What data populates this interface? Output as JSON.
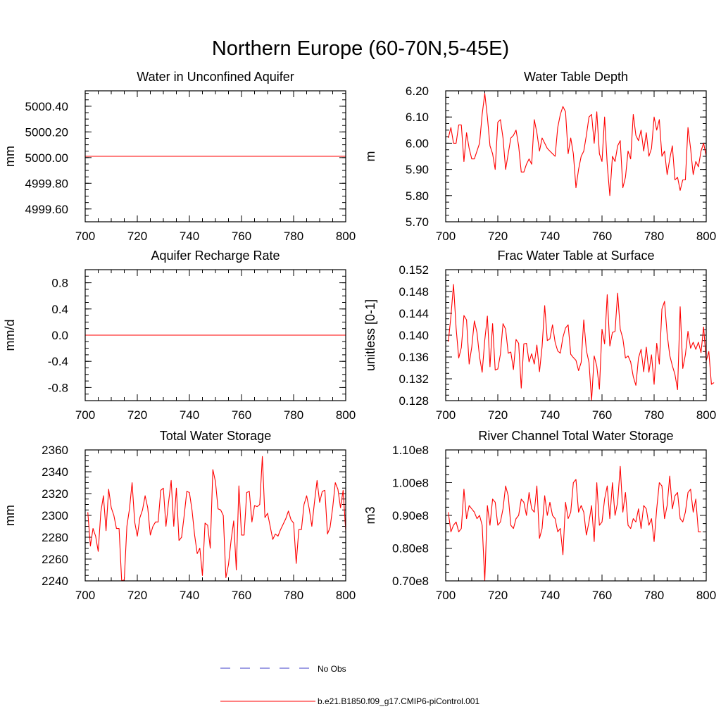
{
  "title": "Northern Europe (60-70N,5-45E)",
  "colors": {
    "model": "#ff0000",
    "obs": "#3c3cc8",
    "axis": "#000000"
  },
  "legend": {
    "obs_label": "No Obs",
    "model_label": "b.e21.B1850.f09_g17.CMIP6-piControl.001"
  },
  "chart_data": [
    {
      "type": "line",
      "title": "Water in Unconfined Aquifer",
      "ylabel": "mm",
      "xlim": [
        700,
        800
      ],
      "ylim": [
        4999.5,
        5000.52
      ],
      "xticks": [
        "700",
        "720",
        "740",
        "760",
        "780",
        "800"
      ],
      "yticks": [
        {
          "v": 4999.6,
          "label": "4999.60"
        },
        {
          "v": 4999.8,
          "label": "4999.80"
        },
        {
          "v": 5000.0,
          "label": "5000.00"
        },
        {
          "v": 5000.2,
          "label": "5000.20"
        },
        {
          "v": 5000.4,
          "label": "5000.40"
        }
      ],
      "series": [
        {
          "name": "b.e21.B1850.f09_g17.CMIP6-piControl.001",
          "x": [
            700,
            800
          ],
          "values": [
            5000.01,
            5000.01
          ]
        }
      ]
    },
    {
      "type": "line",
      "title": "Water Table Depth",
      "ylabel": "m",
      "xlim": [
        700,
        800
      ],
      "ylim": [
        5.7,
        6.2
      ],
      "xticks": [
        "700",
        "720",
        "740",
        "760",
        "780",
        "800"
      ],
      "yticks": [
        {
          "v": 5.7,
          "label": "5.70"
        },
        {
          "v": 5.8,
          "label": "5.80"
        },
        {
          "v": 5.9,
          "label": "5.90"
        },
        {
          "v": 6.0,
          "label": "6.00"
        },
        {
          "v": 6.1,
          "label": "6.10"
        },
        {
          "v": 6.2,
          "label": "6.20"
        }
      ],
      "series": [
        {
          "name": "b.e21.B1850.f09_g17.CMIP6-piControl.001",
          "x_start": 701,
          "values": [
            6.02,
            6.06,
            6.0,
            6.0,
            6.07,
            6.07,
            5.93,
            6.04,
            5.98,
            5.94,
            5.94,
            5.97,
            6.0,
            6.11,
            6.19,
            6.1,
            5.99,
            5.96,
            5.9,
            6.08,
            6.09,
            6.02,
            5.9,
            5.96,
            6.02,
            6.03,
            6.05,
            5.99,
            5.89,
            5.89,
            5.92,
            5.94,
            5.92,
            6.09,
            6.04,
            5.97,
            6.02,
            6.0,
            5.98,
            5.97,
            5.96,
            5.95,
            6.06,
            6.11,
            6.14,
            6.12,
            5.96,
            6.02,
            5.96,
            5.83,
            5.9,
            5.95,
            5.97,
            6.03,
            6.1,
            6.11,
            6.0,
            6.12,
            5.96,
            5.93,
            6.1,
            5.92,
            5.8,
            5.95,
            5.93,
            5.99,
            6.01,
            5.83,
            5.87,
            5.97,
            5.94,
            6.11,
            6.03,
            6.01,
            6.05,
            5.97,
            6.04,
            5.95,
            5.98,
            6.1,
            6.05,
            6.09,
            5.95,
            5.97,
            5.88,
            5.94,
            5.99,
            5.86,
            5.87,
            5.82,
            5.86,
            5.86,
            6.06,
            5.98,
            5.88,
            5.93,
            5.91,
            5.97,
            6.0,
            5.95
          ]
        }
      ]
    },
    {
      "type": "line",
      "title": "Aquifer Recharge Rate",
      "ylabel": "mm/d",
      "xlim": [
        700,
        800
      ],
      "ylim": [
        -1.0,
        1.0
      ],
      "xticks": [
        "700",
        "720",
        "740",
        "760",
        "780",
        "800"
      ],
      "yticks": [
        {
          "v": -0.8,
          "label": "-0.8"
        },
        {
          "v": -0.4,
          "label": "-0.4"
        },
        {
          "v": 0.0,
          "label": "0.0"
        },
        {
          "v": 0.4,
          "label": "0.4"
        },
        {
          "v": 0.8,
          "label": "0.8"
        }
      ],
      "series": [
        {
          "name": "b.e21.B1850.f09_g17.CMIP6-piControl.001",
          "x": [
            700,
            800
          ],
          "values": [
            0.0,
            0.0
          ]
        }
      ]
    },
    {
      "type": "line",
      "title": "Frac Water Table at Surface",
      "ylabel": "unitless [0-1]",
      "xlim": [
        700,
        800
      ],
      "ylim": [
        0.128,
        0.152
      ],
      "xticks": [
        "700",
        "720",
        "740",
        "760",
        "780",
        "800"
      ],
      "yticks": [
        {
          "v": 0.128,
          "label": "0.128"
        },
        {
          "v": 0.132,
          "label": "0.132"
        },
        {
          "v": 0.136,
          "label": "0.136"
        },
        {
          "v": 0.14,
          "label": "0.140"
        },
        {
          "v": 0.144,
          "label": "0.144"
        },
        {
          "v": 0.148,
          "label": "0.148"
        },
        {
          "v": 0.152,
          "label": "0.152"
        }
      ],
      "series": [
        {
          "name": "b.e21.B1850.f09_g17.CMIP6-piControl.001",
          "x_start": 701,
          "values": [
            0.1388,
            0.1434,
            0.1493,
            0.1413,
            0.1358,
            0.1377,
            0.1436,
            0.1428,
            0.1347,
            0.1378,
            0.1426,
            0.1405,
            0.136,
            0.1332,
            0.1391,
            0.1435,
            0.1342,
            0.1421,
            0.1336,
            0.1338,
            0.1365,
            0.1421,
            0.1411,
            0.1367,
            0.1369,
            0.1337,
            0.1392,
            0.1385,
            0.1303,
            0.1384,
            0.1385,
            0.1351,
            0.1366,
            0.1347,
            0.1382,
            0.1333,
            0.1379,
            0.1454,
            0.139,
            0.1393,
            0.1419,
            0.1387,
            0.1371,
            0.1367,
            0.1396,
            0.1413,
            0.1419,
            0.1365,
            0.1359,
            0.1354,
            0.1335,
            0.135,
            0.1428,
            0.1372,
            0.135,
            0.128,
            0.1362,
            0.1343,
            0.1301,
            0.1411,
            0.1384,
            0.1474,
            0.138,
            0.1405,
            0.1407,
            0.1477,
            0.1411,
            0.1394,
            0.1358,
            0.1362,
            0.1351,
            0.1324,
            0.1308,
            0.1358,
            0.1374,
            0.1333,
            0.1378,
            0.1332,
            0.1364,
            0.131,
            0.1385,
            0.1347,
            0.1448,
            0.1462,
            0.1402,
            0.1363,
            0.1344,
            0.1328,
            0.13,
            0.1452,
            0.1339,
            0.1364,
            0.1407,
            0.1376,
            0.1387,
            0.1374,
            0.1387,
            0.1368,
            0.1415,
            0.1353,
            0.137,
            0.131,
            0.1313
          ]
        }
      ]
    },
    {
      "type": "line",
      "title": "Total Water Storage",
      "ylabel": "mm",
      "xlim": [
        700,
        800
      ],
      "ylim": [
        2240,
        2360
      ],
      "xticks": [
        "700",
        "720",
        "740",
        "760",
        "780",
        "800"
      ],
      "yticks": [
        {
          "v": 2240,
          "label": "2240"
        },
        {
          "v": 2260,
          "label": "2260"
        },
        {
          "v": 2280,
          "label": "2280"
        },
        {
          "v": 2300,
          "label": "2300"
        },
        {
          "v": 2320,
          "label": "2320"
        },
        {
          "v": 2340,
          "label": "2340"
        },
        {
          "v": 2360,
          "label": "2360"
        }
      ],
      "series": [
        {
          "name": "b.e21.B1850.f09_g17.CMIP6-piControl.001",
          "x_start": 701,
          "values": [
            2303,
            2272,
            2288,
            2281,
            2267,
            2303,
            2318,
            2286,
            2324,
            2307,
            2300,
            2288,
            2288,
            2240,
            2241,
            2290,
            2306,
            2330,
            2294,
            2281,
            2298,
            2305,
            2318,
            2307,
            2282,
            2290,
            2294,
            2294,
            2323,
            2325,
            2290,
            2312,
            2332,
            2290,
            2325,
            2277,
            2280,
            2300,
            2322,
            2321,
            2305,
            2282,
            2265,
            2270,
            2245,
            2293,
            2291,
            2270,
            2342,
            2331,
            2306,
            2305,
            2300,
            2243,
            2255,
            2277,
            2295,
            2250,
            2327,
            2282,
            2282,
            2321,
            2322,
            2294,
            2309,
            2308,
            2310,
            2354,
            2298,
            2302,
            2290,
            2278,
            2283,
            2281,
            2287,
            2292,
            2297,
            2304,
            2296,
            2293,
            2256,
            2287,
            2287,
            2310,
            2318,
            2306,
            2290,
            2312,
            2332,
            2312,
            2322,
            2323,
            2283,
            2289,
            2307,
            2330,
            2324,
            2307,
            2323,
            2286
          ]
        }
      ]
    },
    {
      "type": "line",
      "title": "River Channel Total Water Storage",
      "ylabel": "m3",
      "xlim": [
        700,
        800
      ],
      "ylim": [
        0.7,
        1.1
      ],
      "units": "1e8",
      "xticks": [
        "700",
        "720",
        "740",
        "760",
        "780",
        "800"
      ],
      "yticks": [
        {
          "v": 0.7,
          "label": "0.70e8"
        },
        {
          "v": 0.8,
          "label": "0.80e8"
        },
        {
          "v": 0.9,
          "label": "0.90e8"
        },
        {
          "v": 1.0,
          "label": "1.00e8"
        },
        {
          "v": 1.1,
          "label": "1.10e8"
        }
      ],
      "series": [
        {
          "name": "b.e21.B1850.f09_g17.CMIP6-piControl.001",
          "x_start": 701,
          "values": [
            0.91,
            0.85,
            0.87,
            0.88,
            0.85,
            0.86,
            0.98,
            0.89,
            0.93,
            0.92,
            0.91,
            0.89,
            0.9,
            0.87,
            0.7,
            0.93,
            0.87,
            0.95,
            0.94,
            0.87,
            0.88,
            0.92,
            0.99,
            0.96,
            0.87,
            0.86,
            0.89,
            0.9,
            0.95,
            0.94,
            0.9,
            0.97,
            0.92,
            0.91,
            0.99,
            0.83,
            0.86,
            0.96,
            0.9,
            0.94,
            0.9,
            0.89,
            0.85,
            0.86,
            0.78,
            0.94,
            0.89,
            0.91,
            1.0,
            1.01,
            0.91,
            0.93,
            0.91,
            0.84,
            0.88,
            0.93,
            0.82,
            1.0,
            0.87,
            0.88,
            0.95,
            0.99,
            0.89,
            1.0,
            0.9,
            0.94,
            1.05,
            0.91,
            0.97,
            0.87,
            0.86,
            0.89,
            0.88,
            0.92,
            0.86,
            0.93,
            0.92,
            0.87,
            0.89,
            0.82,
            0.92,
            1.0,
            0.99,
            0.89,
            0.93,
            1.02,
            0.92,
            0.96,
            0.97,
            0.89,
            0.88,
            0.91,
            0.97,
            0.98,
            0.91,
            0.95,
            0.85,
            0.85
          ]
        }
      ]
    }
  ]
}
